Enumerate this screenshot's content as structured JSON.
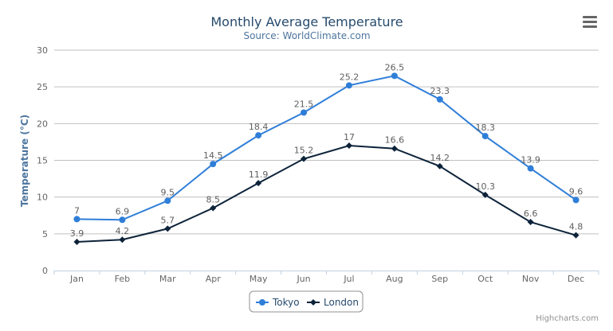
{
  "chart_data": {
    "type": "line",
    "title": "Monthly Average Temperature",
    "subtitle": "Source: WorldClimate.com",
    "xlabel": "",
    "ylabel": "Temperature (°C)",
    "categories": [
      "Jan",
      "Feb",
      "Mar",
      "Apr",
      "May",
      "Jun",
      "Jul",
      "Aug",
      "Sep",
      "Oct",
      "Nov",
      "Dec"
    ],
    "ylim": [
      0,
      30
    ],
    "yticks": [
      0,
      5,
      10,
      15,
      20,
      25,
      30
    ],
    "grid": true,
    "legend_position": "bottom-center",
    "data_labels": true,
    "series": [
      {
        "name": "Tokyo",
        "color": "#2f7ed8",
        "marker": "circle",
        "values": [
          7,
          6.9,
          9.5,
          14.5,
          18.4,
          21.5,
          25.2,
          26.5,
          23.3,
          18.3,
          13.9,
          9.6
        ]
      },
      {
        "name": "London",
        "color": "#0d233a",
        "marker": "diamond",
        "values": [
          3.9,
          4.2,
          5.7,
          8.5,
          11.9,
          15.2,
          17,
          16.6,
          14.2,
          10.3,
          6.6,
          4.8
        ]
      }
    ]
  },
  "credits": "Highcharts.com",
  "menu_icon": "hamburger-menu-icon"
}
